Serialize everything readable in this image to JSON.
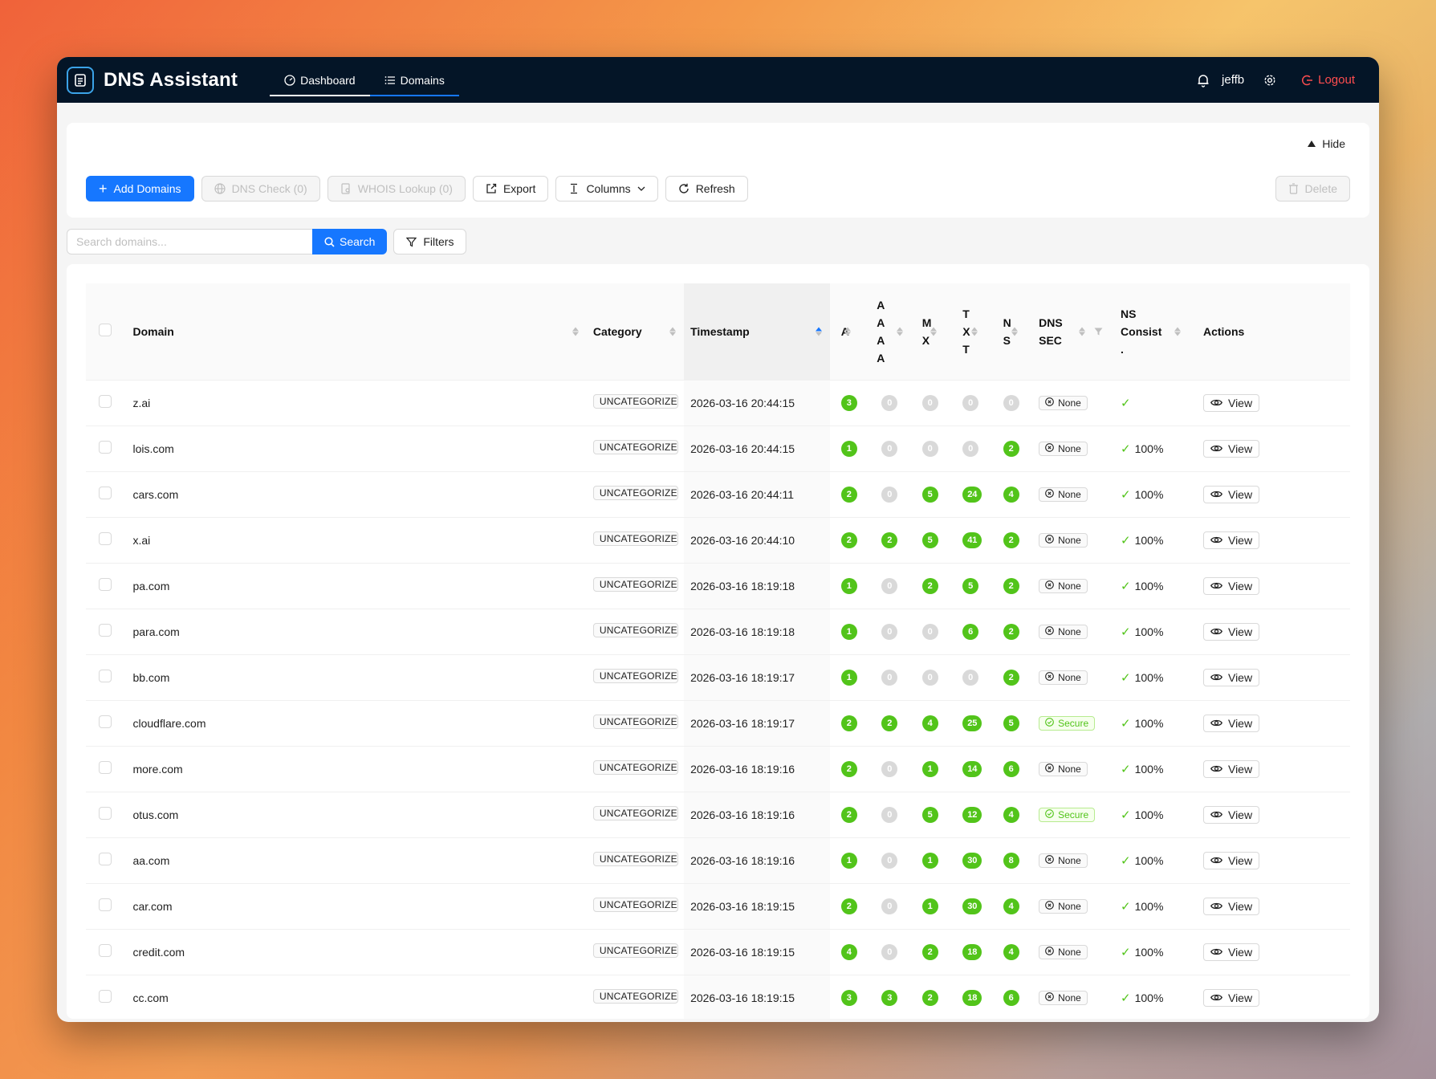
{
  "app": {
    "title": "DNS Assistant"
  },
  "nav": [
    {
      "label": "Dashboard",
      "icon": "dashboard-icon"
    },
    {
      "label": "Domains",
      "icon": "list-icon"
    }
  ],
  "user": {
    "name": "jeffb",
    "logout_label": "Logout"
  },
  "panel": {
    "hide_label": "Hide"
  },
  "toolbar": {
    "add_domains": "Add Domains",
    "dns_check": "DNS Check (0)",
    "whois_lookup": "WHOIS Lookup (0)",
    "export": "Export",
    "columns": "Columns",
    "refresh": "Refresh",
    "delete": "Delete"
  },
  "search": {
    "placeholder": "Search domains...",
    "button": "Search",
    "filters": "Filters"
  },
  "table": {
    "headers": {
      "domain": "Domain",
      "category": "Category",
      "timestamp": "Timestamp",
      "a": "A",
      "aaaa_lines": [
        "A",
        "A",
        "A",
        "A"
      ],
      "mx_lines": [
        "M",
        "X"
      ],
      "txt_lines": [
        "T",
        "X",
        "T"
      ],
      "ns_lines": [
        "N",
        "S"
      ],
      "dnssec_lines": [
        "DNS",
        "SEC"
      ],
      "nsconsist_lines": [
        "NS",
        "Consist",
        "."
      ],
      "actions": "Actions"
    },
    "view_label": "View",
    "rows": [
      {
        "domain": "z.ai",
        "category": "UNCATEGORIZED",
        "timestamp": "2026-03-16 20:44:15",
        "a": "3",
        "aaaa": "0",
        "mx": "0",
        "txt": "0",
        "ns": "0",
        "dnssec": "None",
        "ns_consist": ""
      },
      {
        "domain": "lois.com",
        "category": "UNCATEGORIZED",
        "timestamp": "2026-03-16 20:44:15",
        "a": "1",
        "aaaa": "0",
        "mx": "0",
        "txt": "0",
        "ns": "2",
        "dnssec": "None",
        "ns_consist": "100%"
      },
      {
        "domain": "cars.com",
        "category": "UNCATEGORIZED",
        "timestamp": "2026-03-16 20:44:11",
        "a": "2",
        "aaaa": "0",
        "mx": "5",
        "txt": "24",
        "ns": "4",
        "dnssec": "None",
        "ns_consist": "100%"
      },
      {
        "domain": "x.ai",
        "category": "UNCATEGORIZED",
        "timestamp": "2026-03-16 20:44:10",
        "a": "2",
        "aaaa": "2",
        "mx": "5",
        "txt": "41",
        "ns": "2",
        "dnssec": "None",
        "ns_consist": "100%"
      },
      {
        "domain": "pa.com",
        "category": "UNCATEGORIZED",
        "timestamp": "2026-03-16 18:19:18",
        "a": "1",
        "aaaa": "0",
        "mx": "2",
        "txt": "5",
        "ns": "2",
        "dnssec": "None",
        "ns_consist": "100%"
      },
      {
        "domain": "para.com",
        "category": "UNCATEGORIZED",
        "timestamp": "2026-03-16 18:19:18",
        "a": "1",
        "aaaa": "0",
        "mx": "0",
        "txt": "6",
        "ns": "2",
        "dnssec": "None",
        "ns_consist": "100%"
      },
      {
        "domain": "bb.com",
        "category": "UNCATEGORIZED",
        "timestamp": "2026-03-16 18:19:17",
        "a": "1",
        "aaaa": "0",
        "mx": "0",
        "txt": "0",
        "ns": "2",
        "dnssec": "None",
        "ns_consist": "100%"
      },
      {
        "domain": "cloudflare.com",
        "category": "UNCATEGORIZED",
        "timestamp": "2026-03-16 18:19:17",
        "a": "2",
        "aaaa": "2",
        "mx": "4",
        "txt": "25",
        "ns": "5",
        "dnssec": "Secure",
        "ns_consist": "100%"
      },
      {
        "domain": "more.com",
        "category": "UNCATEGORIZED",
        "timestamp": "2026-03-16 18:19:16",
        "a": "2",
        "aaaa": "0",
        "mx": "1",
        "txt": "14",
        "ns": "6",
        "dnssec": "None",
        "ns_consist": "100%"
      },
      {
        "domain": "otus.com",
        "category": "UNCATEGORIZED",
        "timestamp": "2026-03-16 18:19:16",
        "a": "2",
        "aaaa": "0",
        "mx": "5",
        "txt": "12",
        "ns": "4",
        "dnssec": "Secure",
        "ns_consist": "100%"
      },
      {
        "domain": "aa.com",
        "category": "UNCATEGORIZED",
        "timestamp": "2026-03-16 18:19:16",
        "a": "1",
        "aaaa": "0",
        "mx": "1",
        "txt": "30",
        "ns": "8",
        "dnssec": "None",
        "ns_consist": "100%"
      },
      {
        "domain": "car.com",
        "category": "UNCATEGORIZED",
        "timestamp": "2026-03-16 18:19:15",
        "a": "2",
        "aaaa": "0",
        "mx": "1",
        "txt": "30",
        "ns": "4",
        "dnssec": "None",
        "ns_consist": "100%"
      },
      {
        "domain": "credit.com",
        "category": "UNCATEGORIZED",
        "timestamp": "2026-03-16 18:19:15",
        "a": "4",
        "aaaa": "0",
        "mx": "2",
        "txt": "18",
        "ns": "4",
        "dnssec": "None",
        "ns_consist": "100%"
      },
      {
        "domain": "cc.com",
        "category": "UNCATEGORIZED",
        "timestamp": "2026-03-16 18:19:15",
        "a": "3",
        "aaaa": "3",
        "mx": "2",
        "txt": "18",
        "ns": "6",
        "dnssec": "None",
        "ns_consist": "100%"
      }
    ]
  },
  "colors": {
    "topbar": "#041527",
    "primary": "#1677ff",
    "success": "#52c41a",
    "danger": "#ff4d4f"
  }
}
